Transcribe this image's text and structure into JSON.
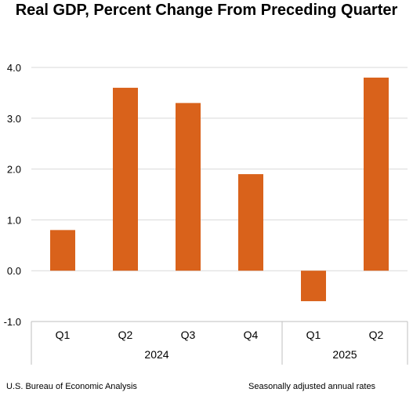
{
  "chart_data": {
    "type": "bar",
    "title": "Real GDP, Percent Change From Preceding Quarter",
    "categories": [
      "Q1",
      "Q2",
      "Q3",
      "Q4",
      "Q1",
      "Q2"
    ],
    "groups": [
      {
        "label": "2024",
        "count": 4
      },
      {
        "label": "2025",
        "count": 2
      }
    ],
    "values": [
      0.8,
      3.6,
      3.3,
      1.9,
      -0.6,
      3.8
    ],
    "ylim": [
      -1.0,
      4.0
    ],
    "yticks": [
      "-1.0",
      "0.0",
      "1.0",
      "2.0",
      "3.0",
      "4.0"
    ],
    "xlabel": "",
    "ylabel": "",
    "grid": true,
    "legend": "none",
    "bar_color": "#D9621B",
    "grid_color": "#D9D9D9",
    "axis_color": "#BFBFBF"
  },
  "footer": {
    "source": "U.S. Bureau of Economic Analysis",
    "note": "Seasonally adjusted annual rates"
  }
}
